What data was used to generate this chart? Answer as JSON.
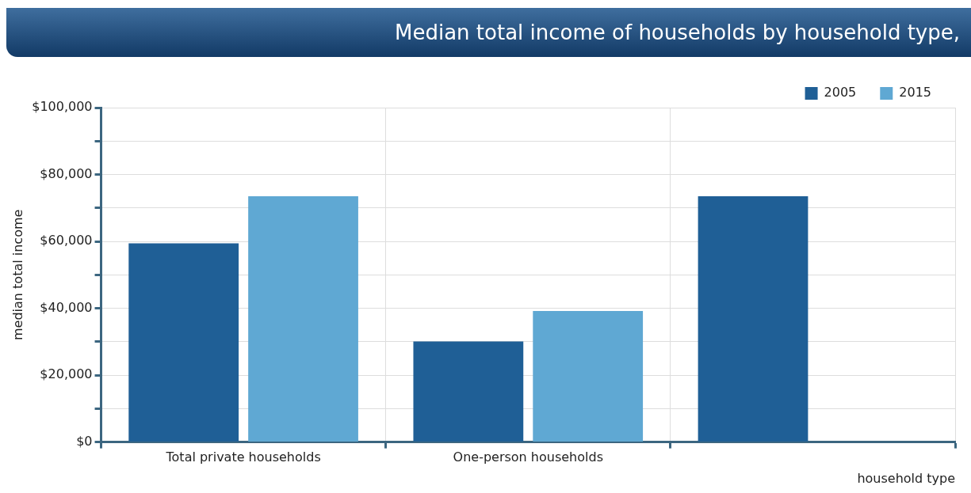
{
  "chart_data": {
    "type": "bar",
    "title": "Median total income of households by household type,",
    "xlabel": "household type",
    "ylabel": "median total income",
    "categories": [
      "Total private households",
      "One-person households",
      null
    ],
    "series": [
      {
        "name": "2005",
        "color": "#1f5f96",
        "values": [
          59400,
          30100,
          73500
        ]
      },
      {
        "name": "2015",
        "color": "#5fa8d3",
        "values": [
          73500,
          39200,
          null
        ]
      }
    ],
    "ylim": [
      0,
      100000
    ],
    "yticks": [
      {
        "value": 0,
        "label": "$0"
      },
      {
        "value": 10000,
        "label": null
      },
      {
        "value": 20000,
        "label": "$20,000"
      },
      {
        "value": 30000,
        "label": null
      },
      {
        "value": 40000,
        "label": "$40,000"
      },
      {
        "value": 50000,
        "label": null
      },
      {
        "value": 60000,
        "label": "$60,000"
      },
      {
        "value": 70000,
        "label": null
      },
      {
        "value": 80000,
        "label": "$80,000"
      },
      {
        "value": 90000,
        "label": null
      },
      {
        "value": 100000,
        "label": "$100,000"
      }
    ],
    "grid": true,
    "legend": "top right"
  }
}
